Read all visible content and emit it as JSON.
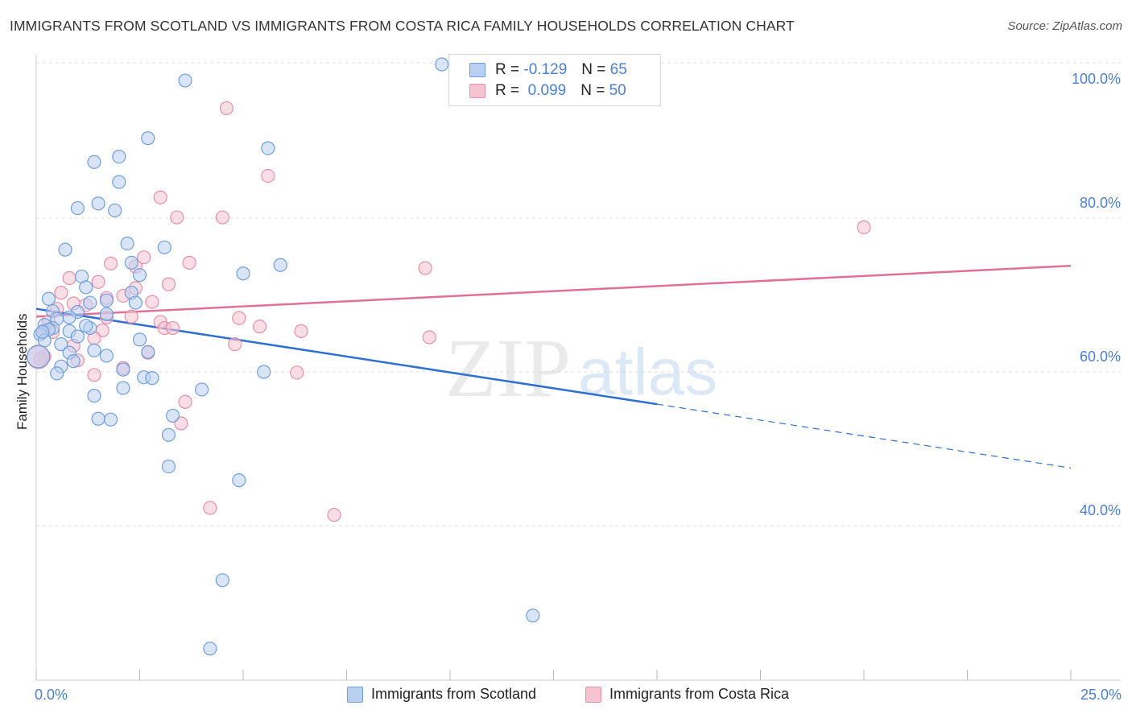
{
  "title": "IMMIGRANTS FROM SCOTLAND VS IMMIGRANTS FROM COSTA RICA FAMILY HOUSEHOLDS CORRELATION CHART",
  "source": "Source: ZipAtlas.com",
  "watermark": {
    "zip": "ZIP",
    "atlas": "atlas"
  },
  "colors": {
    "scotland_fill": "#b9d0f0",
    "scotland_stroke": "#6f9fdc",
    "scotland_line": "#2f6fd0",
    "costarica_fill": "#f6c3d2",
    "costarica_stroke": "#e58fab",
    "costarica_line": "#e07098",
    "tick_label": "#4a7fd4",
    "grid": "#dcdcdc"
  },
  "legend": {
    "rows": [
      {
        "r_label": "R =",
        "r_value": "-0.129",
        "n_label": "N =",
        "n_value": "65"
      },
      {
        "r_label": "R =",
        "r_value": "0.099",
        "n_label": "N =",
        "n_value": "50"
      }
    ]
  },
  "chart_data": {
    "type": "scatter",
    "title": "IMMIGRANTS FROM SCOTLAND VS IMMIGRANTS FROM COSTA RICA FAMILY HOUSEHOLDS CORRELATION CHART",
    "xlabel": "",
    "ylabel": "Family Households",
    "xlim": [
      0,
      25
    ],
    "ylim": [
      20,
      102
    ],
    "x_tick_labels": [
      "0.0%",
      "25.0%"
    ],
    "y_ticks": [
      {
        "value": 100,
        "label": "100.0%"
      },
      {
        "value": 80,
        "label": "80.0%"
      },
      {
        "value": 60,
        "label": "60.0%"
      },
      {
        "value": 40,
        "label": "40.0%"
      }
    ],
    "series": [
      {
        "name": "Immigrants from Scotland",
        "r": -0.129,
        "n": 65,
        "trend": {
          "x_solid": [
            0,
            15
          ],
          "y_solid": [
            68.2,
            55.8
          ],
          "x_dashed": [
            15,
            25
          ],
          "y_dashed": [
            55.8,
            47.5
          ]
        },
        "points": [
          [
            9.8,
            100.0
          ],
          [
            3.6,
            97.9
          ],
          [
            2.7,
            90.4
          ],
          [
            5.6,
            89.1
          ],
          [
            2.0,
            88.0
          ],
          [
            1.4,
            87.3
          ],
          [
            2.0,
            84.7
          ],
          [
            1.5,
            81.9
          ],
          [
            1.0,
            81.3
          ],
          [
            1.9,
            81.0
          ],
          [
            2.2,
            76.7
          ],
          [
            3.1,
            76.2
          ],
          [
            0.7,
            75.9
          ],
          [
            2.3,
            74.2
          ],
          [
            5.9,
            73.9
          ],
          [
            5.0,
            72.8
          ],
          [
            2.5,
            72.6
          ],
          [
            1.1,
            72.4
          ],
          [
            1.2,
            71.0
          ],
          [
            2.3,
            70.3
          ],
          [
            0.3,
            69.5
          ],
          [
            1.7,
            69.3
          ],
          [
            2.4,
            69.0
          ],
          [
            1.3,
            69.0
          ],
          [
            0.4,
            67.9
          ],
          [
            1.0,
            67.8
          ],
          [
            1.7,
            67.5
          ],
          [
            0.8,
            67.1
          ],
          [
            0.5,
            66.9
          ],
          [
            0.2,
            66.1
          ],
          [
            0.4,
            65.7
          ],
          [
            1.3,
            65.7
          ],
          [
            0.3,
            65.5
          ],
          [
            0.8,
            65.3
          ],
          [
            0.1,
            64.9
          ],
          [
            1.0,
            64.6
          ],
          [
            2.5,
            64.2
          ],
          [
            0.2,
            64.1
          ],
          [
            0.6,
            63.6
          ],
          [
            2.7,
            62.6
          ],
          [
            1.4,
            62.8
          ],
          [
            0.8,
            62.5
          ],
          [
            1.7,
            62.1
          ],
          [
            0.9,
            61.4
          ],
          [
            0.6,
            60.7
          ],
          [
            2.1,
            60.3
          ],
          [
            0.5,
            59.8
          ],
          [
            5.5,
            60.0
          ],
          [
            2.6,
            59.3
          ],
          [
            2.8,
            59.2
          ],
          [
            2.1,
            57.9
          ],
          [
            4.0,
            57.7
          ],
          [
            1.4,
            56.9
          ],
          [
            3.3,
            54.3
          ],
          [
            1.5,
            53.9
          ],
          [
            1.8,
            53.8
          ],
          [
            3.2,
            51.8
          ],
          [
            3.2,
            47.7
          ],
          [
            4.9,
            45.9
          ],
          [
            4.5,
            32.9
          ],
          [
            12.0,
            28.3
          ],
          [
            4.2,
            24.0
          ],
          [
            0.05,
            62.0
          ],
          [
            0.15,
            65.2
          ],
          [
            1.2,
            66.0
          ]
        ]
      },
      {
        "name": "Immigrants from Costa Rica",
        "r": 0.099,
        "n": 50,
        "trend": {
          "x_solid": [
            0,
            25
          ],
          "y_solid": [
            67.2,
            73.8
          ]
        },
        "points": [
          [
            4.6,
            94.3
          ],
          [
            5.6,
            85.5
          ],
          [
            3.0,
            82.7
          ],
          [
            3.4,
            80.1
          ],
          [
            4.5,
            80.1
          ],
          [
            20.0,
            78.8
          ],
          [
            2.6,
            74.9
          ],
          [
            3.7,
            74.2
          ],
          [
            1.8,
            74.1
          ],
          [
            2.4,
            73.7
          ],
          [
            9.4,
            73.5
          ],
          [
            0.8,
            72.2
          ],
          [
            1.5,
            71.7
          ],
          [
            3.2,
            71.4
          ],
          [
            2.4,
            70.9
          ],
          [
            0.6,
            70.3
          ],
          [
            2.1,
            69.9
          ],
          [
            1.7,
            69.6
          ],
          [
            2.8,
            69.1
          ],
          [
            0.9,
            68.9
          ],
          [
            1.2,
            68.7
          ],
          [
            0.5,
            68.2
          ],
          [
            2.3,
            67.2
          ],
          [
            1.7,
            67.1
          ],
          [
            4.9,
            67.0
          ],
          [
            3.0,
            66.5
          ],
          [
            0.3,
            66.6
          ],
          [
            5.4,
            65.9
          ],
          [
            3.1,
            65.7
          ],
          [
            3.3,
            65.7
          ],
          [
            6.4,
            65.3
          ],
          [
            0.2,
            65.4
          ],
          [
            0.4,
            65.2
          ],
          [
            1.6,
            65.4
          ],
          [
            1.4,
            64.4
          ],
          [
            9.5,
            64.5
          ],
          [
            4.8,
            63.6
          ],
          [
            0.9,
            63.4
          ],
          [
            2.7,
            62.5
          ],
          [
            0.2,
            62.0
          ],
          [
            0.1,
            61.7
          ],
          [
            1.0,
            61.5
          ],
          [
            2.1,
            60.5
          ],
          [
            6.3,
            59.9
          ],
          [
            1.4,
            59.6
          ],
          [
            3.6,
            56.1
          ],
          [
            3.5,
            53.3
          ],
          [
            4.2,
            42.3
          ],
          [
            7.2,
            41.4
          ],
          [
            0.05,
            61.9
          ]
        ]
      }
    ]
  }
}
